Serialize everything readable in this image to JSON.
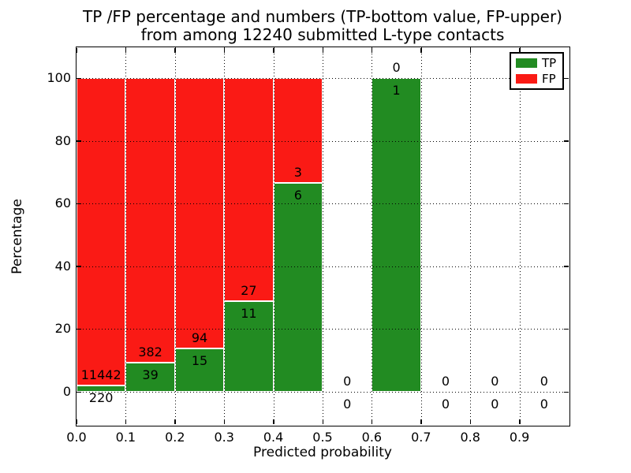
{
  "chart_data": {
    "type": "bar",
    "stacked": true,
    "title_line1": "TP /FP percentage and numbers (TP-bottom value, FP-upper)",
    "title_line2": "from among 12240 submitted L-type contacts",
    "xlabel": "Predicted probability",
    "ylabel": "Percentage",
    "x_ticks": [
      "0.0",
      "0.1",
      "0.2",
      "0.3",
      "0.4",
      "0.5",
      "0.6",
      "0.7",
      "0.8",
      "0.9"
    ],
    "y_ticks": [
      "0",
      "20",
      "40",
      "60",
      "80",
      "100"
    ],
    "xlim": [
      0.0,
      1.0
    ],
    "ylim": [
      -11,
      110
    ],
    "grid": "dotted, drawn above bars",
    "legend_position": "upper right",
    "legend": [
      {
        "label": "TP",
        "color": "#228b22"
      },
      {
        "label": "FP",
        "color": "#fa1a15"
      }
    ],
    "bins": [
      {
        "x0": 0.0,
        "x1": 0.1,
        "tp": 220,
        "fp": 11442,
        "tp_percent": 1.89
      },
      {
        "x0": 0.1,
        "x1": 0.2,
        "tp": 39,
        "fp": 382,
        "tp_percent": 9.26
      },
      {
        "x0": 0.2,
        "x1": 0.3,
        "tp": 15,
        "fp": 94,
        "tp_percent": 13.76
      },
      {
        "x0": 0.3,
        "x1": 0.4,
        "tp": 11,
        "fp": 27,
        "tp_percent": 28.95
      },
      {
        "x0": 0.4,
        "x1": 0.5,
        "tp": 6,
        "fp": 3,
        "tp_percent": 66.67
      },
      {
        "x0": 0.5,
        "x1": 0.6,
        "tp": 0,
        "fp": 0,
        "tp_percent": null
      },
      {
        "x0": 0.6,
        "x1": 0.7,
        "tp": 1,
        "fp": 0,
        "tp_percent": 100
      },
      {
        "x0": 0.7,
        "x1": 0.8,
        "tp": 0,
        "fp": 0,
        "tp_percent": null
      },
      {
        "x0": 0.8,
        "x1": 0.9,
        "tp": 0,
        "fp": 0,
        "tp_percent": null
      },
      {
        "x0": 0.9,
        "x1": 1.0,
        "tp": 0,
        "fp": 0,
        "tp_percent": null
      }
    ]
  }
}
